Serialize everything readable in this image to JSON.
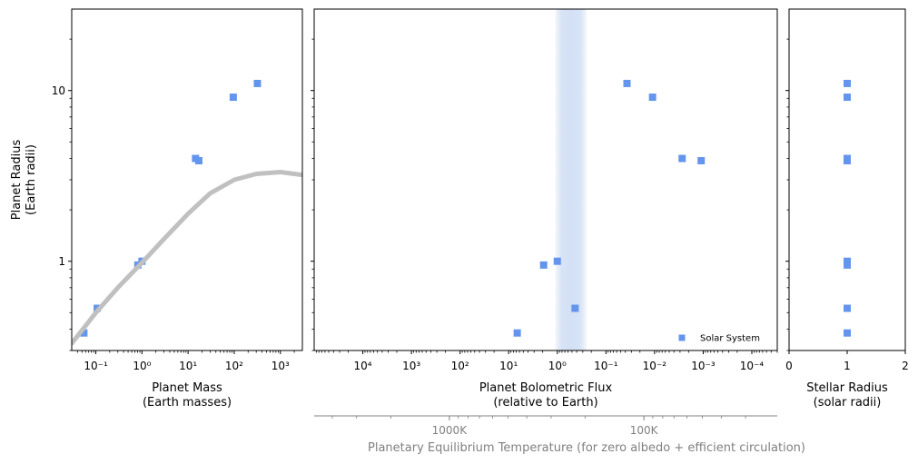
{
  "chart_data": [
    {
      "type": "scatter",
      "panel": "mass",
      "xlabel": [
        "Planet Mass",
        "(Earth masses)"
      ],
      "ylabel": [
        "Planet Radius",
        "(Earth radii)"
      ],
      "x_scale": "log",
      "y_scale": "log",
      "xlim": [
        0.03,
        3000
      ],
      "ylim": [
        0.3,
        30
      ],
      "x_ticks": [
        {
          "value": 0.1,
          "label": "10⁻¹"
        },
        {
          "value": 1,
          "label": "10⁰"
        },
        {
          "value": 10,
          "label": "10¹"
        },
        {
          "value": 100,
          "label": "10²"
        },
        {
          "value": 1000,
          "label": "10³"
        }
      ],
      "y_ticks": [
        {
          "value": 1,
          "label": "1"
        },
        {
          "value": 10,
          "label": "10"
        }
      ],
      "series": [
        {
          "marker": "square",
          "color": "#6495ED",
          "x": [
            0.055,
            0.107,
            0.815,
            1.0,
            14.5,
            17.1,
            95.2,
            317.8
          ],
          "y": [
            0.38,
            0.53,
            0.95,
            1.0,
            4.0,
            3.88,
            9.14,
            11.0
          ]
        },
        {
          "marker": "line",
          "color": "#C0C0C0",
          "x": [
            0.03,
            0.1,
            0.3,
            1,
            3,
            10,
            30,
            100,
            300,
            1000,
            3000
          ],
          "y": [
            0.33,
            0.5,
            0.7,
            0.98,
            1.35,
            1.9,
            2.5,
            3.0,
            3.25,
            3.33,
            3.2
          ]
        }
      ]
    },
    {
      "type": "scatter",
      "panel": "flux",
      "xlabel": [
        "Planet Bolometric Flux",
        "(relative to Earth)"
      ],
      "x_scale": "log",
      "x_inverted": true,
      "y_scale": "log",
      "xlim": [
        100000,
        3e-05
      ],
      "ylim": [
        0.3,
        30
      ],
      "x_ticks": [
        {
          "value": 10000,
          "label": "10⁴"
        },
        {
          "value": 1000,
          "label": "10³"
        },
        {
          "value": 100,
          "label": "10²"
        },
        {
          "value": 10,
          "label": "10¹"
        },
        {
          "value": 1,
          "label": "10⁰"
        },
        {
          "value": 0.1,
          "label": "10⁻¹"
        },
        {
          "value": 0.01,
          "label": "10⁻²"
        },
        {
          "value": 0.001,
          "label": "10⁻³"
        },
        {
          "value": 0.0001,
          "label": "10⁻⁴"
        }
      ],
      "habitable_band": {
        "from": 1.1,
        "to": 0.25,
        "color": "#d3e0f5"
      },
      "legend": {
        "label": "Solar System",
        "position": "lower-right"
      },
      "series": [
        {
          "name": "Solar System",
          "marker": "square",
          "color": "#6495ED",
          "x": [
            6.67,
            1.91,
            1.0,
            0.431,
            0.0369,
            0.011,
            0.00271,
            0.0011
          ],
          "y": [
            0.38,
            0.95,
            1.0,
            0.53,
            11.0,
            9.14,
            4.0,
            3.88
          ]
        }
      ],
      "secondary_axis": {
        "label": "Planetary Equilibrium Temperature (for zero albedo + efficient circulation)",
        "color": "#808080",
        "ticks": [
          {
            "value": 1000,
            "label": "1000K"
          },
          {
            "value": 100,
            "label": "100K"
          }
        ]
      }
    },
    {
      "type": "scatter",
      "panel": "stellar",
      "xlabel": [
        "Stellar Radius",
        "(solar radii)"
      ],
      "x_scale": "linear",
      "y_scale": "log",
      "xlim": [
        0,
        2
      ],
      "ylim": [
        0.3,
        30
      ],
      "x_ticks": [
        {
          "value": 0,
          "label": "0"
        },
        {
          "value": 1,
          "label": "1"
        },
        {
          "value": 2,
          "label": "2"
        }
      ],
      "series": [
        {
          "marker": "square",
          "color": "#6495ED",
          "x": [
            1,
            1,
            1,
            1,
            1,
            1,
            1,
            1
          ],
          "y": [
            0.38,
            0.53,
            0.95,
            1.0,
            3.88,
            4.0,
            9.14,
            11.0
          ]
        }
      ]
    }
  ]
}
